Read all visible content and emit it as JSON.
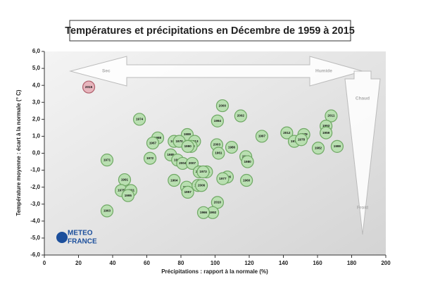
{
  "chart_data": {
    "type": "scatter",
    "title": "Températures et précipitations en Décembre de 1959 à 2015",
    "x_label": "Précipitations : rapport à la normale (%)",
    "y_label": "Température moyenne : écart à la normale (° C)",
    "annotations": {
      "dry": "Sec",
      "wet": "Humide",
      "hot": "Chaud",
      "cold": "Froid"
    },
    "logo": [
      "METEO",
      "FRANCE"
    ],
    "xlim": [
      0,
      200
    ],
    "xticks": [
      0,
      20,
      40,
      60,
      80,
      100,
      120,
      140,
      160,
      180,
      200
    ],
    "ylim": [
      -6,
      6
    ],
    "yticks": [
      {
        "value": -6,
        "label": "-6,0"
      },
      {
        "value": -5,
        "label": "-5,0"
      },
      {
        "value": -4,
        "label": "-4,0"
      },
      {
        "value": -3,
        "label": "-3,0"
      },
      {
        "value": -2,
        "label": "-2,0"
      },
      {
        "value": -1,
        "label": "-1,0"
      },
      {
        "value": 0,
        "label": "0,0"
      },
      {
        "value": 1,
        "label": "1,0"
      },
      {
        "value": 2,
        "label": "2,0"
      },
      {
        "value": 3,
        "label": "3,0"
      },
      {
        "value": 4,
        "label": "4,0"
      },
      {
        "value": 5,
        "label": "5,0"
      },
      {
        "value": 6,
        "label": "6,0"
      }
    ],
    "series": [
      {
        "color": "#e7b5bd",
        "stroke": "#b0606c",
        "x": [
          26
        ],
        "y": [
          3.9
        ],
        "labels": [
          "2015"
        ]
      },
      {
        "color": "#b9dfb1",
        "stroke": "#6fa864",
        "x": [
          55.7,
          104.3,
          115,
          101.4,
          168,
          165,
          165,
          152,
          142,
          127.4,
          146.4,
          150.5,
          160.4,
          171.5,
          83.7,
          66.4,
          63.5,
          61.9,
          36.7,
          101,
          109.7,
          102,
          118,
          119,
          76,
          79,
          88,
          86,
          84,
          74,
          78,
          81,
          86.6,
          90.7,
          95,
          93,
          76,
          118.4,
          107.2,
          104.5,
          47,
          45,
          50.7,
          49,
          36.7,
          83.3,
          84,
          90,
          92,
          101.4,
          98.6,
          93.2
        ],
        "y": [
          2.0,
          2.8,
          2.2,
          1.9,
          2.2,
          1.6,
          1.2,
          1.1,
          1.2,
          1.0,
          0.7,
          0.8,
          0.3,
          0.4,
          1.1,
          0.9,
          0.6,
          -0.3,
          -0.4,
          0.5,
          0.35,
          0.0,
          -0.2,
          -0.5,
          0.7,
          0.7,
          0.7,
          0.4,
          0.4,
          -0.1,
          -0.4,
          -0.6,
          -0.6,
          -1.1,
          -1.1,
          -1.1,
          -1.6,
          -1.6,
          -1.4,
          -1.5,
          -1.56,
          -2.2,
          -2.2,
          -2.5,
          -3.4,
          -2.0,
          -2.3,
          -1.9,
          -1.9,
          -2.9,
          -3.5,
          -3.5
        ],
        "labels": [
          "1974",
          "2000",
          "2002",
          "1994",
          "2011",
          "1993",
          "1959",
          "1979",
          "2012",
          "1997",
          "1976",
          "1978",
          "1982",
          "1999",
          "1989",
          "1988",
          "1967",
          "1972",
          "1971",
          "2003",
          "1986",
          "1961",
          "2009",
          "1980",
          "1984",
          "1970",
          "2013",
          "1998",
          "1990",
          "1985",
          "1983",
          "2004",
          "2007",
          "2008",
          "1981",
          "1973",
          "1964",
          "1960",
          "1996",
          "1977",
          "1991",
          "1975",
          "2001",
          "1995",
          "1963",
          "2005",
          "1957",
          "1968",
          "2006",
          "2010",
          "1992",
          "1966"
        ]
      }
    ]
  }
}
